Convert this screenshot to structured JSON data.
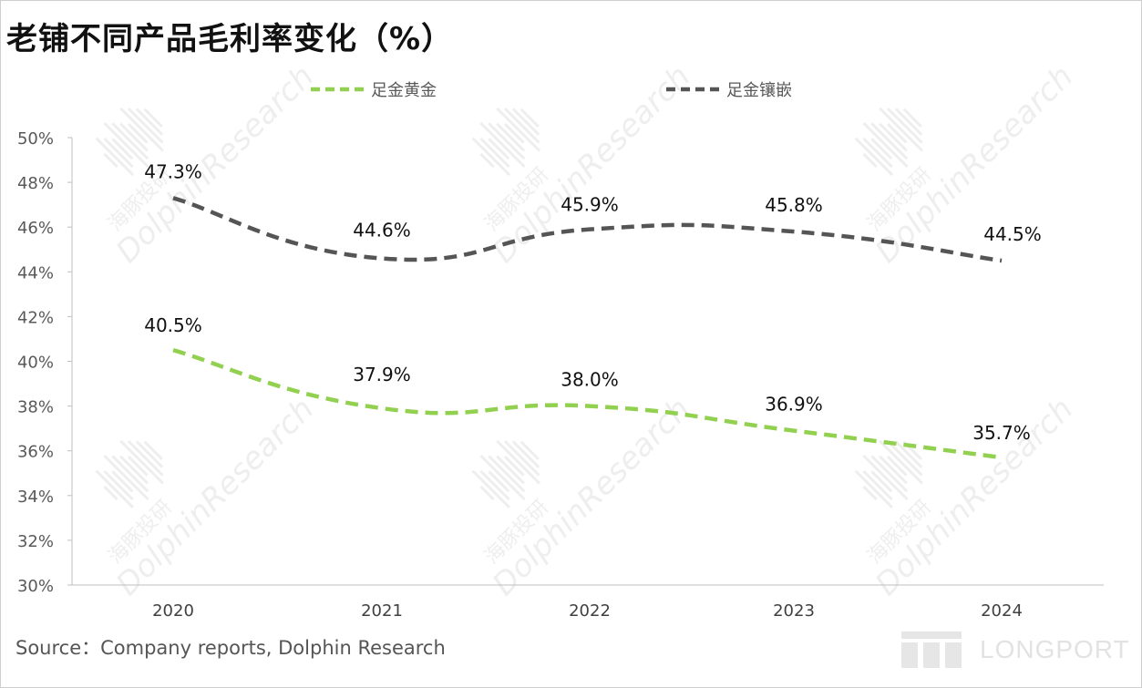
{
  "title": "老铺不同产品毛利率变化（%）",
  "source": "Source：Company reports, Dolphin Research",
  "watermark": {
    "cn": "海豚投研",
    "en": "DolphinResearch"
  },
  "brand_logo": "LONGPORT",
  "chart_data": {
    "type": "line",
    "title": "老铺不同产品毛利率变化（%）",
    "xlabel": "",
    "ylabel": "",
    "categories": [
      "2020",
      "2021",
      "2022",
      "2023",
      "2024"
    ],
    "ylim": [
      30,
      50
    ],
    "yticks": [
      30,
      32,
      34,
      36,
      38,
      40,
      42,
      44,
      46,
      48,
      50
    ],
    "ytick_labels": [
      "30%",
      "32%",
      "34%",
      "36%",
      "38%",
      "40%",
      "42%",
      "44%",
      "46%",
      "48%",
      "50%"
    ],
    "grid": false,
    "legend_position": "top",
    "series": [
      {
        "name": "足金黄金",
        "values": [
          40.5,
          37.9,
          38.0,
          36.9,
          35.7
        ],
        "labels": [
          "40.5%",
          "37.9%",
          "38.0%",
          "36.9%",
          "35.7%"
        ],
        "color": "#92d050",
        "style": "dashed-smooth"
      },
      {
        "name": "足金镶嵌",
        "values": [
          47.3,
          44.6,
          45.9,
          45.8,
          44.5
        ],
        "labels": [
          "47.3%",
          "44.6%",
          "45.9%",
          "45.8%",
          "44.5%"
        ],
        "color": "#555555",
        "style": "dashed-smooth"
      }
    ]
  }
}
